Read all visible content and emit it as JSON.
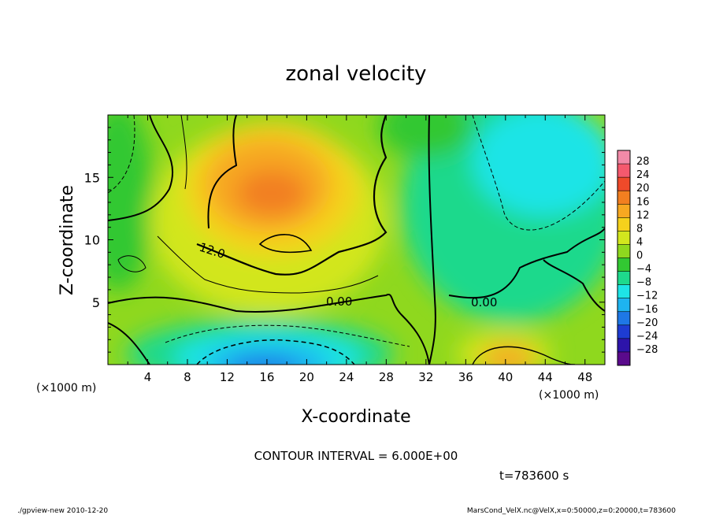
{
  "chart_data": {
    "type": "heatmap",
    "title": "zonal velocity",
    "xlabel": "X-coordinate",
    "ylabel": "Z-coordinate",
    "x_unit_label": "(×1000 m)",
    "xlim": [
      0,
      50
    ],
    "ylim": [
      0,
      20
    ],
    "x_ticks": [
      4,
      8,
      12,
      16,
      20,
      24,
      28,
      32,
      36,
      40,
      44,
      48
    ],
    "y_ticks": [
      5,
      10,
      15
    ],
    "contour_interval_text": "CONTOUR INTERVAL = 6.000E+00",
    "contour_labels": [
      "12.0",
      "0.00",
      "0.00"
    ],
    "time_label": "t=783600 s",
    "colorbar": {
      "levels": [
        28,
        24,
        20,
        16,
        12,
        8,
        4,
        0,
        -4,
        -8,
        -12,
        -16,
        -20,
        -24,
        -28
      ],
      "colors": [
        "#f28aa8",
        "#f5596e",
        "#ef4a2a",
        "#f27f20",
        "#f7a821",
        "#f5d11c",
        "#d2e61e",
        "#8fd81e",
        "#32c832",
        "#1ed98c",
        "#1ee4e6",
        "#1eb4f0",
        "#1e78e6",
        "#1e3cd2",
        "#2d14aa",
        "#5a0a8c"
      ]
    },
    "features": [
      {
        "name": "positive jet core",
        "center": [
          17,
          13
        ],
        "max": 18
      },
      {
        "name": "negative near-surface flow",
        "center": [
          19,
          1.2
        ],
        "min": -14
      },
      {
        "name": "positive near-surface flow",
        "center": [
          41,
          1
        ],
        "max": 14
      },
      {
        "name": "negative upper-right region",
        "center": [
          44,
          15
        ],
        "min": -10
      }
    ]
  },
  "footer": {
    "left": "./gpview-new  2010-12-20",
    "right": "MarsCond_VelX.nc@VelX,x=0:50000,z=0:20000,t=783600"
  }
}
